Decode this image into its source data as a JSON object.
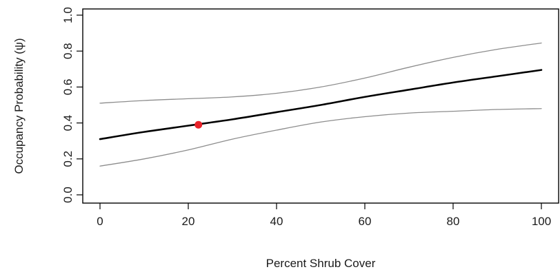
{
  "chart_data": {
    "type": "line",
    "title": "",
    "xlabel": "Percent Shrub Cover",
    "ylabel": "Occupancy Probability (ψ)",
    "xlim": [
      0,
      100
    ],
    "ylim": [
      0,
      1
    ],
    "x_ticks": [
      "0",
      "20",
      "40",
      "60",
      "80",
      "100"
    ],
    "y_ticks": [
      "0.0",
      "0.2",
      "0.4",
      "0.6",
      "0.8",
      "1.0"
    ],
    "grid": false,
    "legend": "none",
    "series": [
      {
        "role": "estimate",
        "color": "#000000",
        "x": [
          0,
          10,
          20,
          30,
          40,
          50,
          60,
          70,
          80,
          90,
          100
        ],
        "y": [
          0.31,
          0.35,
          0.385,
          0.42,
          0.46,
          0.5,
          0.545,
          0.585,
          0.625,
          0.66,
          0.695
        ]
      },
      {
        "role": "upper-bound",
        "color": "#8c8c8c",
        "x": [
          0,
          10,
          20,
          30,
          40,
          50,
          60,
          70,
          80,
          90,
          100
        ],
        "y": [
          0.51,
          0.525,
          0.535,
          0.545,
          0.565,
          0.6,
          0.65,
          0.71,
          0.765,
          0.81,
          0.845
        ]
      },
      {
        "role": "lower-bound",
        "color": "#8c8c8c",
        "x": [
          0,
          10,
          20,
          30,
          40,
          50,
          60,
          70,
          80,
          90,
          100
        ],
        "y": [
          0.16,
          0.2,
          0.25,
          0.31,
          0.36,
          0.405,
          0.435,
          0.455,
          0.465,
          0.475,
          0.48
        ]
      }
    ],
    "points": [
      {
        "x": 22.3,
        "y": 0.39,
        "color": "#e8232a"
      }
    ]
  }
}
